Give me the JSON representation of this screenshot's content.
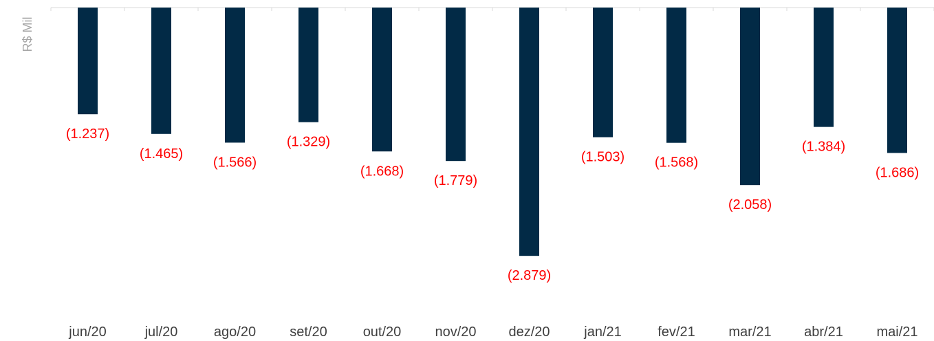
{
  "chart_data": {
    "type": "bar",
    "title": "",
    "xlabel": "",
    "ylabel": "R$ Mil",
    "categories": [
      "jun/20",
      "jul/20",
      "ago/20",
      "set/20",
      "out/20",
      "nov/20",
      "dez/20",
      "jan/21",
      "fev/21",
      "mar/21",
      "abr/21",
      "mai/21"
    ],
    "values": [
      -1237,
      -1465,
      -1566,
      -1329,
      -1668,
      -1779,
      -2879,
      -1503,
      -1568,
      -2058,
      -1384,
      -1686
    ],
    "data_labels": [
      "(1.237)",
      "(1.465)",
      "(1.566)",
      "(1.329)",
      "(1.668)",
      "(1.779)",
      "(2.879)",
      "(1.503)",
      "(1.568)",
      "(2.058)",
      "(1.384)",
      "(1.686)"
    ],
    "ylim": [
      -3300,
      0
    ],
    "grid": false,
    "legend": "none",
    "colors": {
      "bar": "#022a46",
      "label": "#ff0000",
      "axis": "#d9d9d9",
      "tick_label": "#404040",
      "ylabel": "#a6a6a6"
    }
  }
}
